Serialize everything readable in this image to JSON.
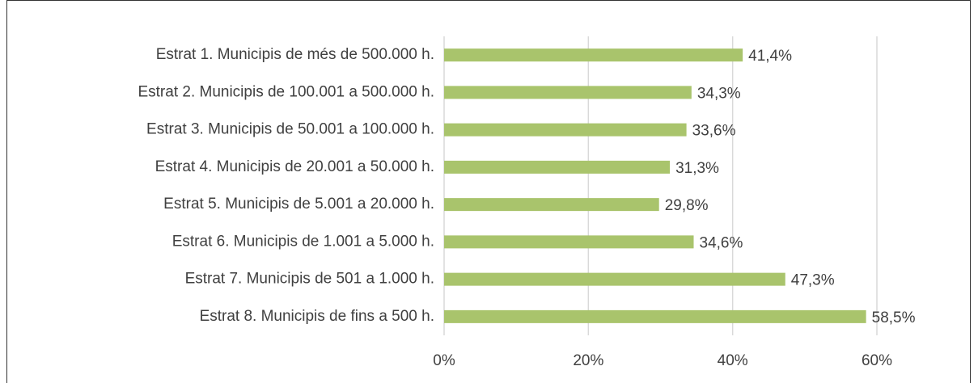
{
  "chart_data": {
    "type": "bar",
    "orientation": "horizontal",
    "categories": [
      "Estrat 1. Municipis de més de 500.000 h.",
      "Estrat 2. Municipis de 100.001 a 500.000 h.",
      "Estrat 3. Municipis de 50.001 a 100.000 h.",
      "Estrat 4. Municipis de 20.001 a 50.000 h.",
      "Estrat 5. Municipis de 5.001 a 20.000 h.",
      "Estrat 6. Municipis de 1.001 a 5.000 h.",
      "Estrat 7. Municipis de 501 a 1.000 h.",
      "Estrat 8. Municipis de fins a 500 h."
    ],
    "values": [
      41.4,
      34.3,
      33.6,
      31.3,
      29.8,
      34.6,
      47.3,
      58.5
    ],
    "value_labels": [
      "41,4%",
      "34,3%",
      "33,6%",
      "31,3%",
      "29,8%",
      "34,6%",
      "47,3%",
      "58,5%"
    ],
    "color": "#a9c46c",
    "xlim": [
      0,
      70
    ],
    "xticks": [
      {
        "value": 0,
        "label": "0%"
      },
      {
        "value": 20,
        "label": "20%"
      },
      {
        "value": 40,
        "label": "40%"
      },
      {
        "value": 60,
        "label": "60%"
      }
    ],
    "grid": true
  }
}
